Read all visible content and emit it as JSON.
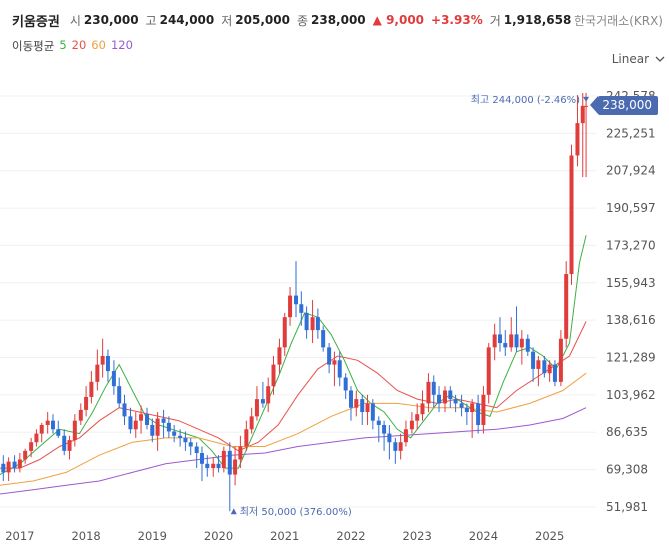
{
  "header": {
    "stock_name": "키움증권",
    "open_label": "시",
    "open": "230,000",
    "high_label": "고",
    "high": "244,000",
    "low_label": "저",
    "low": "205,000",
    "close_label": "종",
    "close": "238,000",
    "change": "▲ 9,000",
    "change_pct": "+3.93%",
    "volume_label": "거",
    "volume": "1,918,658",
    "exchange": "한국거래소(KRX)"
  },
  "ma_legend": {
    "title": "이동평균",
    "items": [
      {
        "label": "5",
        "color": "#3cb043"
      },
      {
        "label": "20",
        "color": "#e8514a"
      },
      {
        "label": "60",
        "color": "#f0a040"
      },
      {
        "label": "120",
        "color": "#9b59d0"
      }
    ]
  },
  "scale": {
    "label": "Linear"
  },
  "current_price_tag": "238,000",
  "colors": {
    "up": "#e03c3c",
    "down": "#2f6fd6",
    "tag": "#4a6bb0"
  },
  "chart_data": {
    "type": "candlestick",
    "title": "키움증권",
    "x_axis_ticks": [
      "2017",
      "2018",
      "2019",
      "2020",
      "2021",
      "2022",
      "2023",
      "2024",
      "2025"
    ],
    "y_axis_ticks": [
      "242,578",
      "225,251",
      "207,924",
      "190,597",
      "173,270",
      "155,943",
      "138,616",
      "121,289",
      "103,962",
      "86,635",
      "69,308",
      "51,981"
    ],
    "y_tick_values": [
      242578,
      225251,
      207924,
      190597,
      173270,
      155943,
      138616,
      121289,
      103962,
      86635,
      69308,
      51981
    ],
    "ylim": [
      45000,
      250000
    ],
    "x_range": [
      2016.7,
      2025.7
    ],
    "annotations": {
      "max_label": "최고 244,000 (-2.46%)",
      "max_value": 244000,
      "max_date": 2025.55,
      "min_label": "최저 50,000 (376.00%)",
      "min_value": 50000,
      "min_date": 2020.2
    },
    "series": [
      {
        "name": "price",
        "type": "candlestick",
        "date": [
          2016.75,
          2016.83,
          2016.92,
          2017.0,
          2017.08,
          2017.17,
          2017.25,
          2017.33,
          2017.42,
          2017.5,
          2017.58,
          2017.67,
          2017.75,
          2017.83,
          2017.92,
          2018.0,
          2018.08,
          2018.17,
          2018.25,
          2018.33,
          2018.42,
          2018.5,
          2018.58,
          2018.67,
          2018.75,
          2018.83,
          2018.92,
          2019.0,
          2019.08,
          2019.17,
          2019.25,
          2019.33,
          2019.42,
          2019.5,
          2019.58,
          2019.67,
          2019.75,
          2019.83,
          2019.92,
          2020.0,
          2020.08,
          2020.17,
          2020.25,
          2020.33,
          2020.42,
          2020.5,
          2020.58,
          2020.67,
          2020.75,
          2020.83,
          2020.92,
          2021.0,
          2021.08,
          2021.17,
          2021.25,
          2021.33,
          2021.42,
          2021.5,
          2021.58,
          2021.67,
          2021.75,
          2021.83,
          2021.92,
          2022.0,
          2022.08,
          2022.17,
          2022.25,
          2022.33,
          2022.42,
          2022.5,
          2022.58,
          2022.67,
          2022.75,
          2022.83,
          2022.92,
          2023.0,
          2023.08,
          2023.17,
          2023.25,
          2023.33,
          2023.42,
          2023.5,
          2023.58,
          2023.67,
          2023.75,
          2023.83,
          2023.92,
          2024.0,
          2024.08,
          2024.17,
          2024.25,
          2024.33,
          2024.42,
          2024.5,
          2024.58,
          2024.67,
          2024.75,
          2024.83,
          2024.92,
          2025.0,
          2025.08,
          2025.17,
          2025.25,
          2025.33,
          2025.42,
          2025.5,
          2025.55
        ],
        "open": [
          72000,
          68000,
          73000,
          70000,
          74000,
          78000,
          82000,
          86000,
          90000,
          92000,
          88000,
          85000,
          78000,
          83000,
          92000,
          97000,
          103000,
          110000,
          118000,
          122000,
          115000,
          108000,
          100000,
          94000,
          88000,
          92000,
          95000,
          90000,
          85000,
          93000,
          91000,
          87000,
          85000,
          84000,
          82000,
          80000,
          77000,
          72000,
          70000,
          72000,
          70000,
          78000,
          67000,
          74000,
          80000,
          88000,
          94000,
          102000,
          100000,
          108000,
          118000,
          126000,
          140000,
          150000,
          146000,
          142000,
          134000,
          140000,
          134000,
          126000,
          118000,
          120000,
          112000,
          106000,
          98000,
          102000,
          96000,
          100000,
          92000,
          90000,
          86000,
          82000,
          78000,
          82000,
          88000,
          92000,
          95000,
          100000,
          110000,
          104000,
          100000,
          106000,
          102000,
          100000,
          98000,
          96000,
          100000,
          90000,
          104000,
          126000,
          132000,
          128000,
          126000,
          132000,
          126000,
          130000,
          124000,
          116000,
          120000,
          114000,
          118000,
          110000,
          130000,
          160000,
          215000,
          230000,
          238000
        ],
        "high": [
          76000,
          75000,
          76000,
          77000,
          79000,
          84000,
          88000,
          91000,
          96000,
          95000,
          92000,
          88000,
          85000,
          95000,
          100000,
          108000,
          115000,
          125000,
          130000,
          125000,
          120000,
          112000,
          104000,
          98000,
          96000,
          99000,
          98000,
          93000,
          96000,
          97000,
          94000,
          90000,
          88000,
          87000,
          84000,
          82000,
          80000,
          76000,
          75000,
          76000,
          80000,
          82000,
          80000,
          85000,
          92000,
          98000,
          108000,
          110000,
          112000,
          122000,
          130000,
          142000,
          154000,
          166000,
          152000,
          145000,
          148000,
          144000,
          136000,
          128000,
          124000,
          124000,
          114000,
          108000,
          106000,
          104000,
          104000,
          102000,
          94000,
          92000,
          90000,
          84000,
          86000,
          92000,
          96000,
          100000,
          106000,
          114000,
          113000,
          108000,
          108000,
          108000,
          104000,
          104000,
          100000,
          102000,
          104000,
          108000,
          128000,
          137000,
          140000,
          134000,
          140000,
          145000,
          134000,
          132000,
          126000,
          122000,
          122000,
          120000,
          120000,
          134000,
          166000,
          220000,
          243000,
          244000,
          244000
        ],
        "low": [
          64000,
          64000,
          68000,
          68000,
          72000,
          75000,
          80000,
          82000,
          86000,
          86000,
          84000,
          76000,
          74000,
          80000,
          90000,
          94000,
          100000,
          106000,
          112000,
          110000,
          104000,
          98000,
          90000,
          86000,
          84000,
          86000,
          88000,
          82000,
          78000,
          84000,
          84000,
          82000,
          80000,
          78000,
          76000,
          70000,
          64000,
          66000,
          66000,
          68000,
          68000,
          50000,
          62000,
          70000,
          78000,
          86000,
          92000,
          98000,
          96000,
          104000,
          114000,
          122000,
          136000,
          140000,
          136000,
          130000,
          128000,
          130000,
          124000,
          114000,
          108000,
          108000,
          102000,
          92000,
          94000,
          90000,
          90000,
          88000,
          82000,
          78000,
          74000,
          72000,
          74000,
          80000,
          86000,
          88000,
          92000,
          96000,
          98000,
          96000,
          96000,
          98000,
          96000,
          94000,
          90000,
          84000,
          86000,
          86000,
          100000,
          120000,
          124000,
          122000,
          124000,
          124000,
          118000,
          122000,
          110000,
          108000,
          112000,
          110000,
          108000,
          108000,
          126000,
          155000,
          210000,
          205000,
          205000
        ]
      },
      {
        "name": "MA5",
        "color": "#3cb043",
        "x": [
          2016.7,
          2017.0,
          2017.3,
          2017.6,
          2017.9,
          2018.1,
          2018.3,
          2018.5,
          2018.7,
          2018.9,
          2019.1,
          2019.3,
          2019.5,
          2019.7,
          2019.9,
          2020.1,
          2020.3,
          2020.5,
          2020.7,
          2020.9,
          2021.1,
          2021.3,
          2021.5,
          2021.7,
          2021.9,
          2022.1,
          2022.3,
          2022.5,
          2022.7,
          2022.9,
          2023.1,
          2023.3,
          2023.5,
          2023.7,
          2023.9,
          2024.1,
          2024.3,
          2024.5,
          2024.7,
          2024.9,
          2025.1,
          2025.3,
          2025.45,
          2025.55
        ],
        "y": [
          67000,
          72000,
          80000,
          88000,
          86000,
          96000,
          108000,
          118000,
          106000,
          94000,
          90000,
          88000,
          86000,
          84000,
          78000,
          70000,
          70000,
          84000,
          98000,
          112000,
          128000,
          142000,
          140000,
          132000,
          120000,
          106000,
          100000,
          96000,
          88000,
          84000,
          92000,
          100000,
          104000,
          100000,
          96000,
          94000,
          110000,
          124000,
          126000,
          122000,
          116000,
          128000,
          165000,
          178000
        ]
      },
      {
        "name": "MA20",
        "color": "#e8514a",
        "x": [
          2016.7,
          2017.0,
          2017.3,
          2017.6,
          2017.9,
          2018.2,
          2018.5,
          2018.8,
          2019.1,
          2019.4,
          2019.7,
          2020.0,
          2020.3,
          2020.6,
          2020.9,
          2021.2,
          2021.5,
          2021.8,
          2022.1,
          2022.4,
          2022.7,
          2023.0,
          2023.3,
          2023.6,
          2023.9,
          2024.2,
          2024.5,
          2024.8,
          2025.1,
          2025.3,
          2025.55
        ],
        "y": [
          70000,
          70000,
          74000,
          80000,
          84000,
          92000,
          98000,
          96000,
          94000,
          92000,
          88000,
          84000,
          78000,
          82000,
          90000,
          104000,
          116000,
          122000,
          120000,
          114000,
          106000,
          102000,
          100000,
          102000,
          100000,
          98000,
          106000,
          112000,
          118000,
          122000,
          138000
        ]
      },
      {
        "name": "MA60",
        "color": "#f0a040",
        "x": [
          2016.7,
          2017.2,
          2017.7,
          2018.2,
          2018.7,
          2019.2,
          2019.7,
          2020.2,
          2020.7,
          2021.2,
          2021.7,
          2022.2,
          2022.7,
          2023.2,
          2023.7,
          2024.2,
          2024.7,
          2025.2,
          2025.55
        ],
        "y": [
          62000,
          64000,
          68000,
          76000,
          82000,
          84000,
          84000,
          80000,
          80000,
          86000,
          94000,
          100000,
          100000,
          98000,
          98000,
          96000,
          100000,
          106000,
          114000
        ]
      },
      {
        "name": "MA120",
        "color": "#9b59d0",
        "x": [
          2016.7,
          2017.2,
          2017.7,
          2018.2,
          2018.7,
          2019.2,
          2019.7,
          2020.2,
          2020.7,
          2021.2,
          2021.7,
          2022.2,
          2022.7,
          2023.2,
          2023.7,
          2024.2,
          2024.7,
          2025.2,
          2025.55
        ],
        "y": [
          58000,
          60000,
          62000,
          64000,
          68000,
          72000,
          74000,
          76000,
          77000,
          80000,
          82000,
          84000,
          85000,
          86000,
          87000,
          88000,
          90000,
          93000,
          98000
        ]
      }
    ]
  }
}
